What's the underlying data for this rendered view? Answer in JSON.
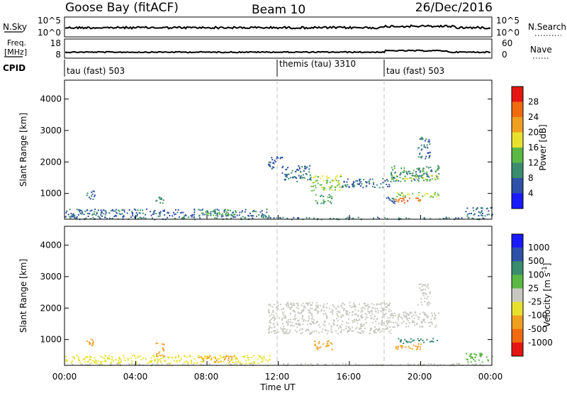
{
  "header": {
    "title": "Goose Bay (fitACF)",
    "beam": "Beam 10",
    "date": "26/Dec/2016"
  },
  "noise_panel": {
    "left_label": "N.Sky",
    "left_ticks": [
      "10^5",
      "10^0"
    ],
    "right_ticks": [
      "10^5",
      "10^0"
    ],
    "right_label": "N.Search"
  },
  "freq_panel": {
    "left_label_1": "Freq.",
    "left_label_2": "[MHz]",
    "left_ticks": [
      "18",
      "8"
    ],
    "right_ticks": [
      "60",
      "0"
    ],
    "right_label": "Nave"
  },
  "cpid": {
    "label": "CPID",
    "segments": [
      {
        "name": "tau (fast) 503",
        "start_hour": 0
      },
      {
        "name": "themis (tau) 3310",
        "start_hour": 12
      },
      {
        "name": "tau (fast) 503",
        "start_hour": 18
      }
    ]
  },
  "power_colorbar": {
    "label": "Power [dB]",
    "ticks": [
      "4",
      "8",
      "12",
      "16",
      "20",
      "24",
      "28"
    ],
    "colors": [
      "#1a1aff",
      "#2f52a8",
      "#3b8c6e",
      "#5bb845",
      "#e8e030",
      "#f0a020",
      "#f06a10",
      "#e61515"
    ]
  },
  "velocity_colorbar": {
    "label_main": "Velocity [m s",
    "label_exp": "-1",
    "label_close": "]",
    "ticks": [
      "1000",
      "500",
      "100",
      "25",
      "-25",
      "-100",
      "-500",
      "-1000"
    ],
    "colors": [
      "#1a1aff",
      "#2f52a8",
      "#3b8c6e",
      "#5bb845",
      "#c8c8c0",
      "#e8e030",
      "#f0a020",
      "#f06a10",
      "#e61515"
    ]
  },
  "axes": {
    "ylabel": "Slant Range [km]",
    "yticks": [
      "1000",
      "2000",
      "3000",
      "4000"
    ],
    "xticks": [
      "00:00",
      "04:00",
      "08:00",
      "12:00",
      "16:00",
      "20:00",
      "00:00"
    ],
    "xlabel": "Time UT"
  },
  "chart_data": [
    {
      "type": "heatmap",
      "quantity": "power",
      "x": "time_hours",
      "ylabel": "Slant Range [km]",
      "xlabel": "Time UT",
      "xlim": [
        0,
        24
      ],
      "ylim": [
        180,
        4600
      ],
      "unit": "dB",
      "scale": [
        0,
        30
      ],
      "regions": [
        {
          "t": [
            0.0,
            24.0
          ],
          "r": [
            190,
            260
          ],
          "level": 9
        },
        {
          "t": [
            0.0,
            11.5
          ],
          "r": [
            260,
            520
          ],
          "level": 7
        },
        {
          "t": [
            1.2,
            1.7
          ],
          "r": [
            820,
            1100
          ],
          "level": 8
        },
        {
          "t": [
            5.1,
            5.6
          ],
          "r": [
            700,
            900
          ],
          "level": 10
        },
        {
          "t": [
            7.5,
            9.5
          ],
          "r": [
            300,
            500
          ],
          "level": 12
        },
        {
          "t": [
            11.4,
            12.2
          ],
          "r": [
            1800,
            2200
          ],
          "level": 6
        },
        {
          "t": [
            12.2,
            13.8
          ],
          "r": [
            1400,
            1900
          ],
          "level": 8
        },
        {
          "t": [
            13.8,
            15.5
          ],
          "r": [
            1100,
            1600
          ],
          "level": 15
        },
        {
          "t": [
            14.0,
            15.0
          ],
          "r": [
            700,
            1000
          ],
          "level": 12
        },
        {
          "t": [
            15.5,
            18.3
          ],
          "r": [
            1200,
            1500
          ],
          "level": 7
        },
        {
          "t": [
            18.3,
            21.0
          ],
          "r": [
            1400,
            1900
          ],
          "level": 10
        },
        {
          "t": [
            18.3,
            21.0
          ],
          "r": [
            1450,
            1600
          ],
          "level": 16
        },
        {
          "t": [
            18.5,
            21.0
          ],
          "r": [
            900,
            1050
          ],
          "level": 16
        },
        {
          "t": [
            18.5,
            20.0
          ],
          "r": [
            700,
            900
          ],
          "level": 26
        },
        {
          "t": [
            18.0,
            18.6
          ],
          "r": [
            700,
            900
          ],
          "level": 6
        },
        {
          "t": [
            19.8,
            20.5
          ],
          "r": [
            2100,
            2800
          ],
          "level": 8
        },
        {
          "t": [
            22.5,
            24.0
          ],
          "r": [
            300,
            600
          ],
          "level": 8
        }
      ]
    },
    {
      "type": "heatmap",
      "quantity": "velocity",
      "x": "time_hours",
      "ylabel": "Slant Range [km]",
      "xlabel": "Time UT",
      "xlim": [
        0,
        24
      ],
      "ylim": [
        180,
        4600
      ],
      "unit": "m s-1",
      "regions": [
        {
          "t": [
            0.0,
            24.0
          ],
          "r": [
            190,
            260
          ],
          "v": 0
        },
        {
          "t": [
            0.0,
            11.5
          ],
          "r": [
            260,
            520
          ],
          "v": -60
        },
        {
          "t": [
            1.2,
            1.7
          ],
          "r": [
            820,
            1100
          ],
          "v": -150
        },
        {
          "t": [
            5.1,
            5.6
          ],
          "r": [
            450,
            900
          ],
          "v": -200
        },
        {
          "t": [
            7.5,
            9.5
          ],
          "r": [
            300,
            500
          ],
          "v": -300
        },
        {
          "t": [
            11.4,
            18.3
          ],
          "r": [
            1200,
            2200
          ],
          "v": 0
        },
        {
          "t": [
            14.0,
            15.0
          ],
          "r": [
            700,
            1000
          ],
          "v": -300
        },
        {
          "t": [
            18.3,
            21.0
          ],
          "r": [
            1400,
            1900
          ],
          "v": 0
        },
        {
          "t": [
            18.5,
            21.0
          ],
          "r": [
            900,
            1050
          ],
          "v": 150
        },
        {
          "t": [
            18.5,
            20.0
          ],
          "r": [
            700,
            900
          ],
          "v": -300
        },
        {
          "t": [
            19.8,
            20.5
          ],
          "r": [
            2100,
            2800
          ],
          "v": 0
        },
        {
          "t": [
            22.5,
            24.0
          ],
          "r": [
            300,
            600
          ],
          "v": 80
        }
      ]
    }
  ]
}
